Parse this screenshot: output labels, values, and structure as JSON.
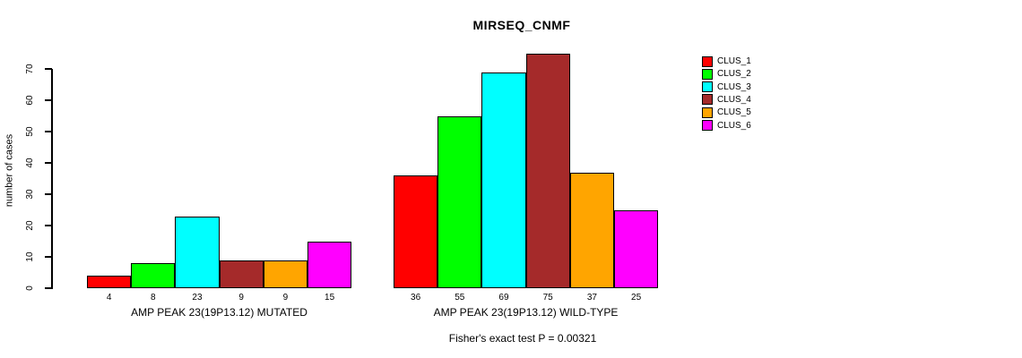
{
  "title": "MIRSEQ_CNMF",
  "y_axis": {
    "label": "number of cases",
    "ticks": [
      0,
      10,
      20,
      30,
      40,
      50,
      60,
      70
    ]
  },
  "footer": "Fisher's exact test P = 0.00321",
  "legend": {
    "items": [
      {
        "label": "CLUS_1",
        "color": "#FF0000"
      },
      {
        "label": "CLUS_2",
        "color": "#00FF00"
      },
      {
        "label": "CLUS_3",
        "color": "#00FFFF"
      },
      {
        "label": "CLUS_4",
        "color": "#A52A2A"
      },
      {
        "label": "CLUS_5",
        "color": "#FFA500"
      },
      {
        "label": "CLUS_6",
        "color": "#FF00FF"
      }
    ]
  },
  "chart_data": {
    "type": "bar",
    "title": "MIRSEQ_CNMF",
    "ylabel": "number of cases",
    "ylim": [
      0,
      70
    ],
    "grid": false,
    "legend_position": "top-right",
    "series_names": [
      "CLUS_1",
      "CLUS_2",
      "CLUS_3",
      "CLUS_4",
      "CLUS_5",
      "CLUS_6"
    ],
    "series_colors": [
      "#FF0000",
      "#00FF00",
      "#00FFFF",
      "#A52A2A",
      "#FFA500",
      "#FF00FF"
    ],
    "groups": [
      {
        "label": "AMP PEAK 23(19P13.12) MUTATED",
        "values": [
          4,
          8,
          23,
          9,
          9,
          15
        ]
      },
      {
        "label": "AMP PEAK 23(19P13.12) WILD-TYPE",
        "values": [
          36,
          55,
          69,
          75,
          37,
          25
        ]
      }
    ],
    "annotation": "Fisher's exact test P = 0.00321"
  }
}
